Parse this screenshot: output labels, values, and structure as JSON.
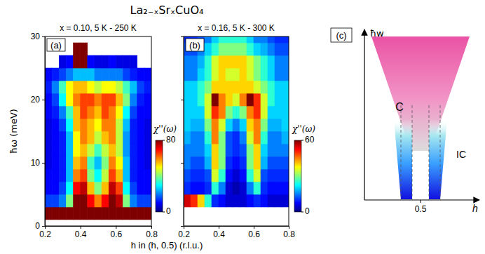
{
  "title": "La₂₋ₓSrₓCuO₄",
  "chart_data": [
    {
      "type": "heatmap",
      "panel": "(a)",
      "subtitle": "x = 0.10, 5 K - 250 K",
      "xlabel": "h in (h, 0.5) (r.l.u.)",
      "ylabel": "ħω (meV)",
      "xlim": [
        0.2,
        0.8
      ],
      "ylim": [
        0,
        30
      ],
      "xticks": [
        0.2,
        0.4,
        0.6,
        0.8
      ],
      "yticks": [
        0,
        10,
        20,
        30
      ],
      "tick_labels": true,
      "x_edges": [
        0.2,
        0.24,
        0.28,
        0.32,
        0.36,
        0.4,
        0.44,
        0.48,
        0.52,
        0.56,
        0.6,
        0.64,
        0.68,
        0.72,
        0.76,
        0.8
      ],
      "y_edges": [
        1,
        3,
        5,
        7,
        9,
        11,
        13,
        15,
        17,
        19,
        21,
        23,
        25,
        27,
        29
      ],
      "z": [
        [
          80,
          80,
          80,
          80,
          80,
          80,
          80,
          80,
          80,
          80,
          80,
          80,
          80,
          80,
          80
        ],
        [
          15,
          15,
          20,
          40,
          80,
          80,
          70,
          60,
          70,
          80,
          75,
          40,
          20,
          15,
          15
        ],
        [
          10,
          10,
          15,
          30,
          70,
          75,
          55,
          40,
          55,
          75,
          65,
          30,
          15,
          10,
          10
        ],
        [
          10,
          10,
          12,
          25,
          60,
          65,
          40,
          30,
          45,
          65,
          55,
          25,
          12,
          10,
          10
        ],
        [
          8,
          10,
          12,
          25,
          55,
          60,
          35,
          25,
          40,
          60,
          50,
          25,
          12,
          10,
          8
        ],
        [
          8,
          10,
          12,
          25,
          50,
          55,
          45,
          35,
          45,
          55,
          45,
          22,
          12,
          10,
          8
        ],
        [
          8,
          10,
          12,
          25,
          50,
          60,
          55,
          45,
          55,
          60,
          45,
          22,
          12,
          10,
          8
        ],
        [
          8,
          10,
          15,
          30,
          55,
          60,
          55,
          50,
          60,
          60,
          45,
          25,
          12,
          10,
          8
        ],
        [
          10,
          12,
          20,
          35,
          55,
          65,
          60,
          55,
          65,
          60,
          50,
          30,
          15,
          10,
          10
        ],
        [
          10,
          15,
          30,
          50,
          60,
          65,
          65,
          60,
          65,
          65,
          55,
          40,
          20,
          12,
          10
        ],
        [
          12,
          20,
          35,
          50,
          55,
          55,
          50,
          45,
          50,
          50,
          45,
          35,
          25,
          15,
          12
        ],
        [
          10,
          12,
          15,
          20,
          25,
          25,
          25,
          20,
          20,
          20,
          20,
          15,
          12,
          10,
          10
        ],
        [
          null,
          null,
          8,
          10,
          80,
          80,
          10,
          8,
          8,
          10,
          8,
          8,
          8,
          null,
          null
        ],
        [
          null,
          null,
          null,
          null,
          80,
          80,
          null,
          null,
          null,
          null,
          null,
          null,
          null,
          null,
          null
        ]
      ],
      "colorbar": {
        "label": "χ''(ω)",
        "range": [
          0,
          80
        ],
        "ticks": [
          0,
          80
        ]
      }
    },
    {
      "type": "heatmap",
      "panel": "(b)",
      "subtitle": "x = 0.16, 5 K - 300 K",
      "xlim": [
        0.2,
        0.8
      ],
      "ylim": [
        0,
        30
      ],
      "xticks": [
        0.2,
        0.4,
        0.6,
        0.8
      ],
      "yticks": [
        0,
        10,
        20,
        30
      ],
      "tick_labels": "x",
      "x_edges": [
        0.2,
        0.24,
        0.28,
        0.32,
        0.36,
        0.4,
        0.44,
        0.48,
        0.52,
        0.56,
        0.6,
        0.64,
        0.68,
        0.72,
        0.76,
        0.8
      ],
      "y_edges": [
        3,
        5,
        7,
        9,
        11,
        13,
        15,
        17,
        19,
        21,
        23,
        25,
        27,
        29,
        31
      ],
      "z": [
        [
          55,
          50,
          40,
          25,
          10,
          8,
          5,
          5,
          5,
          8,
          10,
          8,
          5,
          5,
          5
        ],
        [
          10,
          8,
          8,
          10,
          25,
          15,
          5,
          3,
          5,
          15,
          25,
          10,
          8,
          8,
          8
        ],
        [
          12,
          10,
          10,
          12,
          35,
          25,
          8,
          5,
          8,
          25,
          35,
          12,
          10,
          10,
          10
        ],
        [
          15,
          12,
          12,
          18,
          40,
          30,
          10,
          8,
          10,
          30,
          40,
          18,
          12,
          12,
          12
        ],
        [
          15,
          15,
          15,
          20,
          40,
          30,
          12,
          10,
          12,
          30,
          40,
          20,
          15,
          15,
          15
        ],
        [
          18,
          15,
          15,
          25,
          45,
          30,
          12,
          10,
          15,
          35,
          45,
          25,
          15,
          15,
          18
        ],
        [
          20,
          18,
          18,
          30,
          45,
          35,
          20,
          15,
          20,
          40,
          45,
          30,
          18,
          18,
          20
        ],
        [
          20,
          20,
          20,
          35,
          50,
          45,
          30,
          25,
          30,
          45,
          50,
          35,
          20,
          20,
          20
        ],
        [
          20,
          20,
          25,
          35,
          60,
          45,
          40,
          35,
          45,
          60,
          50,
          35,
          25,
          20,
          20
        ],
        [
          20,
          20,
          25,
          30,
          40,
          40,
          40,
          40,
          40,
          40,
          35,
          30,
          25,
          20,
          20
        ],
        [
          15,
          15,
          20,
          25,
          35,
          40,
          35,
          35,
          40,
          35,
          30,
          25,
          20,
          15,
          15
        ],
        [
          15,
          15,
          18,
          25,
          35,
          40,
          40,
          40,
          40,
          35,
          30,
          25,
          20,
          15,
          15
        ],
        [
          12,
          12,
          15,
          20,
          25,
          30,
          30,
          30,
          30,
          25,
          20,
          18,
          15,
          12,
          12
        ],
        [
          10,
          10,
          12,
          15,
          20,
          25,
          25,
          25,
          25,
          20,
          15,
          15,
          12,
          10,
          10
        ]
      ],
      "colorbar": {
        "label": "χ''(ω)",
        "range": [
          0,
          60
        ],
        "ticks": [
          0,
          60
        ]
      }
    }
  ],
  "schematic": {
    "panel": "(c)",
    "y_label": "ħw",
    "x_label": "h",
    "x_tick": "0.5",
    "commensurate_label": "C",
    "incommensurate_label": "IC"
  }
}
